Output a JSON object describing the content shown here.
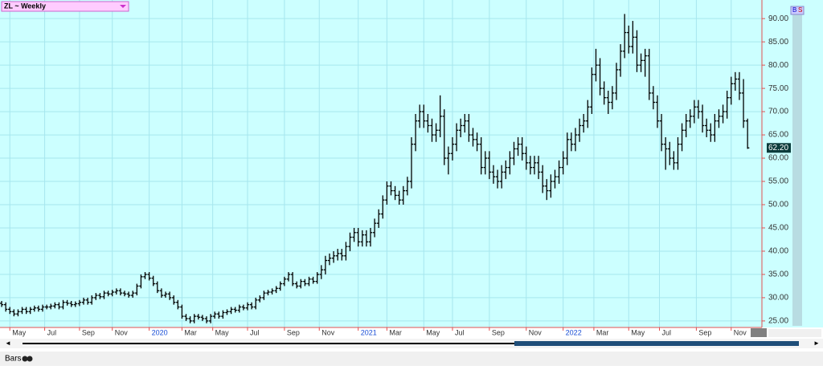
{
  "chart_data": {
    "type": "ohlc",
    "title": "ZL ~ Weekly",
    "footer": "Bars",
    "color": "#000000",
    "grid": true,
    "last_label": "62.20",
    "bars": [
      [
        28.8,
        29.3,
        28,
        28.5
      ],
      [
        28.5,
        29,
        27,
        27.5
      ],
      [
        27.5,
        28,
        26.5,
        27
      ],
      [
        27,
        27.5,
        26,
        26.5
      ],
      [
        26.5,
        27.5,
        26,
        27
      ],
      [
        27,
        28,
        26.5,
        27.5
      ],
      [
        27.5,
        28,
        26.5,
        27
      ],
      [
        27,
        28,
        26.5,
        27.5
      ],
      [
        27.5,
        28.3,
        27,
        27.8
      ],
      [
        27.8,
        28.3,
        27,
        27.5
      ],
      [
        27.5,
        28.5,
        27,
        28
      ],
      [
        28,
        28.5,
        27.5,
        28
      ],
      [
        28,
        28.7,
        27.5,
        28.2
      ],
      [
        28.2,
        29,
        27.7,
        28.5
      ],
      [
        28.5,
        29,
        27.5,
        28
      ],
      [
        28,
        29.5,
        27.5,
        29
      ],
      [
        29,
        29.5,
        28.3,
        28.8
      ],
      [
        28.8,
        29.3,
        28,
        28.5
      ],
      [
        28.5,
        29.2,
        28,
        28.7
      ],
      [
        28.7,
        29.5,
        28.2,
        29
      ],
      [
        29,
        30,
        28.5,
        29.5
      ],
      [
        29.5,
        30,
        28.5,
        29
      ],
      [
        29,
        30.5,
        28.5,
        30
      ],
      [
        30,
        31,
        29.5,
        30.5
      ],
      [
        30.5,
        31,
        29.7,
        30.2
      ],
      [
        30.2,
        31.5,
        29.7,
        31
      ],
      [
        31,
        31.5,
        30.3,
        30.8
      ],
      [
        30.8,
        31.7,
        30.3,
        31.2
      ],
      [
        31.2,
        32,
        30.7,
        31.5
      ],
      [
        31.5,
        32,
        30.5,
        31
      ],
      [
        31,
        31.5,
        30.3,
        30.8
      ],
      [
        30.8,
        31.3,
        30,
        30.5
      ],
      [
        30.5,
        31.5,
        30,
        31
      ],
      [
        31,
        33,
        30.5,
        32.5
      ],
      [
        32.5,
        35,
        32,
        34.5
      ],
      [
        34.5,
        35.5,
        34,
        35
      ],
      [
        35,
        35.5,
        33.7,
        34.2
      ],
      [
        34.2,
        34.7,
        32.5,
        33
      ],
      [
        33,
        33.5,
        31,
        31.5
      ],
      [
        31.5,
        32,
        30,
        30.5
      ],
      [
        30.5,
        31.3,
        30,
        30.8
      ],
      [
        30.8,
        31.3,
        29.5,
        30
      ],
      [
        30,
        30.5,
        28.5,
        29
      ],
      [
        29,
        29.5,
        27.5,
        28
      ],
      [
        28,
        28.5,
        25.5,
        26
      ],
      [
        26,
        26.5,
        25,
        25.5
      ],
      [
        25.5,
        26,
        24.5,
        25
      ],
      [
        25,
        26.5,
        24.5,
        26
      ],
      [
        26,
        26.5,
        25.3,
        25.8
      ],
      [
        25.8,
        26.3,
        25,
        25.5
      ],
      [
        25.5,
        26,
        24.5,
        25
      ],
      [
        25,
        26.5,
        24.5,
        26
      ],
      [
        26,
        27,
        25.5,
        26.5
      ],
      [
        26.5,
        27,
        25.5,
        26
      ],
      [
        26,
        27.3,
        25.5,
        26.8
      ],
      [
        26.8,
        27.5,
        26.3,
        27
      ],
      [
        27,
        28,
        26.5,
        27.5
      ],
      [
        27.5,
        28,
        26.8,
        27.3
      ],
      [
        27.3,
        28.5,
        26.8,
        28
      ],
      [
        28,
        28.5,
        27.3,
        27.8
      ],
      [
        27.8,
        29,
        27.3,
        28.5
      ],
      [
        28.5,
        29,
        27.5,
        28
      ],
      [
        28,
        30,
        27.5,
        29.5
      ],
      [
        29.5,
        30.5,
        29,
        30
      ],
      [
        30,
        31.5,
        29.5,
        31
      ],
      [
        31,
        31.7,
        30.5,
        31.2
      ],
      [
        31.2,
        32,
        30.7,
        31.5
      ],
      [
        31.5,
        32.5,
        31,
        32
      ],
      [
        32,
        33.5,
        31.5,
        33
      ],
      [
        33,
        34.5,
        32.5,
        34
      ],
      [
        34,
        35.5,
        33.5,
        35
      ],
      [
        35,
        35.5,
        32.5,
        33
      ],
      [
        33,
        33.5,
        32,
        32.5
      ],
      [
        32.5,
        34,
        32,
        33.5
      ],
      [
        33.5,
        34,
        32.5,
        33
      ],
      [
        33,
        34.5,
        32.5,
        34
      ],
      [
        34,
        34.5,
        33,
        33.5
      ],
      [
        33.5,
        35.5,
        33,
        35
      ],
      [
        35,
        37,
        34,
        36
      ],
      [
        36,
        39,
        35,
        38
      ],
      [
        38,
        39.5,
        37,
        38.5
      ],
      [
        38.5,
        40,
        37.5,
        39
      ],
      [
        39,
        40.5,
        38,
        39.5
      ],
      [
        39.5,
        40.5,
        38,
        39
      ],
      [
        39,
        42,
        38,
        41
      ],
      [
        41,
        44,
        40,
        43
      ],
      [
        43,
        45,
        42,
        44
      ],
      [
        44,
        45,
        41,
        42
      ],
      [
        42,
        44.5,
        41,
        43.5
      ],
      [
        43.5,
        44.5,
        41,
        42
      ],
      [
        42,
        45,
        41,
        44
      ],
      [
        44,
        47,
        43,
        46
      ],
      [
        46,
        49,
        45,
        48
      ],
      [
        48,
        52,
        47,
        51
      ],
      [
        51,
        55,
        50,
        54
      ],
      [
        54,
        55,
        52,
        53
      ],
      [
        53,
        54,
        51,
        52
      ],
      [
        52,
        53,
        50,
        51
      ],
      [
        51,
        54,
        50,
        53
      ],
      [
        53,
        56,
        52,
        55
      ],
      [
        55,
        64.5,
        53.5,
        63
      ],
      [
        63,
        69.5,
        61.5,
        68
      ],
      [
        68,
        71.5,
        66.5,
        70
      ],
      [
        70,
        71.5,
        66.5,
        68
      ],
      [
        68,
        69.5,
        65.5,
        67
      ],
      [
        67,
        68.5,
        63.5,
        65
      ],
      [
        65,
        67.5,
        63.5,
        66
      ],
      [
        66,
        73.5,
        64.5,
        69
      ],
      [
        69,
        70.5,
        58.5,
        60
      ],
      [
        60,
        62.5,
        56.5,
        61
      ],
      [
        61,
        64.5,
        59.5,
        63
      ],
      [
        63,
        67.5,
        61.5,
        66
      ],
      [
        66,
        68.5,
        64.5,
        67
      ],
      [
        67,
        69.5,
        65.5,
        68
      ],
      [
        68,
        69.5,
        63.5,
        65
      ],
      [
        65,
        66.5,
        62.5,
        64
      ],
      [
        64,
        65.5,
        61.5,
        63
      ],
      [
        63,
        64.5,
        56.5,
        58
      ],
      [
        58,
        61.5,
        56.5,
        60
      ],
      [
        60,
        61.5,
        55.5,
        57
      ],
      [
        57,
        58.5,
        54.5,
        56
      ],
      [
        56,
        57.5,
        53.5,
        55
      ],
      [
        55,
        58.5,
        53.5,
        57
      ],
      [
        57,
        59.5,
        55.5,
        58
      ],
      [
        58,
        61.5,
        56.5,
        60
      ],
      [
        60,
        63.5,
        58.5,
        62
      ],
      [
        62,
        64.5,
        60.5,
        63
      ],
      [
        63,
        64.5,
        59.5,
        61
      ],
      [
        61,
        62.5,
        57.5,
        59
      ],
      [
        59,
        60.5,
        56.5,
        58
      ],
      [
        58,
        60.5,
        56.5,
        59
      ],
      [
        59,
        60.5,
        55.5,
        57
      ],
      [
        57,
        58.5,
        52.5,
        54
      ],
      [
        54,
        55.5,
        51,
        53
      ],
      [
        53,
        56.5,
        51.5,
        55
      ],
      [
        55,
        57.5,
        53.5,
        56
      ],
      [
        56,
        59.5,
        54.5,
        58
      ],
      [
        58,
        61.5,
        56.5,
        60
      ],
      [
        60,
        65.5,
        58.5,
        64
      ],
      [
        64,
        65.5,
        61.5,
        63
      ],
      [
        63,
        66.5,
        61.5,
        65
      ],
      [
        65,
        68.5,
        63.5,
        67
      ],
      [
        67,
        69.5,
        65.5,
        68
      ],
      [
        68,
        72.5,
        66.5,
        71
      ],
      [
        71,
        79.5,
        69.5,
        78
      ],
      [
        78,
        83.5,
        76.5,
        80
      ],
      [
        80,
        81.5,
        73.5,
        75
      ],
      [
        75,
        76.5,
        71.5,
        73
      ],
      [
        73,
        74.5,
        69.5,
        72
      ],
      [
        72,
        75.5,
        70.5,
        74
      ],
      [
        74,
        80.5,
        72.5,
        79
      ],
      [
        79,
        84.5,
        77.5,
        83
      ],
      [
        83,
        91,
        81.5,
        87
      ],
      [
        87,
        88.5,
        82.5,
        84
      ],
      [
        84,
        89.5,
        82.5,
        86
      ],
      [
        86,
        87.5,
        78.5,
        80
      ],
      [
        80,
        82.5,
        78.5,
        81
      ],
      [
        81,
        83.5,
        77.5,
        82
      ],
      [
        82,
        83.5,
        72.5,
        74
      ],
      [
        74,
        75.5,
        70.5,
        72
      ],
      [
        72,
        73.5,
        66.5,
        68
      ],
      [
        68,
        69.5,
        61.5,
        63
      ],
      [
        63,
        64.5,
        57.5,
        62
      ],
      [
        62,
        63.5,
        58.5,
        60
      ],
      [
        60,
        61.5,
        57.5,
        59
      ],
      [
        59,
        64.5,
        57.5,
        63
      ],
      [
        63,
        67.5,
        61.5,
        66
      ],
      [
        66,
        69.5,
        64.5,
        68
      ],
      [
        68,
        70.5,
        66.5,
        69
      ],
      [
        69,
        72.5,
        67.5,
        71
      ],
      [
        71,
        72.5,
        68.5,
        70
      ],
      [
        70,
        71.5,
        65.5,
        67
      ],
      [
        67,
        68.5,
        64.5,
        66
      ],
      [
        66,
        67.5,
        63.5,
        65
      ],
      [
        65,
        69.5,
        63.5,
        68
      ],
      [
        68,
        70.5,
        66.5,
        69
      ],
      [
        69,
        71.5,
        67.5,
        70
      ],
      [
        70,
        74.5,
        68.5,
        73
      ],
      [
        73,
        77.5,
        71.5,
        76
      ],
      [
        76,
        78.5,
        74.5,
        77
      ],
      [
        77,
        78.5,
        72.5,
        74
      ],
      [
        74,
        77,
        66.5,
        68
      ],
      [
        68,
        68.5,
        62,
        62.2
      ]
    ],
    "xlim": [
      -0.4,
      185.5
    ],
    "xticks": [
      {
        "value": 2,
        "label": "May"
      },
      {
        "value": 10.5,
        "label": "Jul"
      },
      {
        "value": 19,
        "label": "Sep"
      },
      {
        "value": 27,
        "label": "Nov"
      },
      {
        "value": 36,
        "label": "2020"
      },
      {
        "value": 44,
        "label": "Mar"
      },
      {
        "value": 51.5,
        "label": "May"
      },
      {
        "value": 60,
        "label": "Jul"
      },
      {
        "value": 69,
        "label": "Sep"
      },
      {
        "value": 77.5,
        "label": "Nov"
      },
      {
        "value": 87,
        "label": "2021"
      },
      {
        "value": 94,
        "label": "Mar"
      },
      {
        "value": 103,
        "label": "May"
      },
      {
        "value": 110,
        "label": "Jul"
      },
      {
        "value": 119,
        "label": "Sep"
      },
      {
        "value": 128,
        "label": "Nov"
      },
      {
        "value": 137,
        "label": "2022"
      },
      {
        "value": 144.5,
        "label": "Mar"
      },
      {
        "value": 153,
        "label": "May"
      },
      {
        "value": 160.5,
        "label": "Jul"
      },
      {
        "value": 169.5,
        "label": "Sep"
      },
      {
        "value": 178,
        "label": "Nov"
      }
    ],
    "ylim": [
      23.6,
      94
    ],
    "yticks": [
      {
        "value": 25,
        "label": "25.00"
      },
      {
        "value": 30,
        "label": "30.00"
      },
      {
        "value": 35,
        "label": "35.00"
      },
      {
        "value": 40,
        "label": "40.00"
      },
      {
        "value": 45,
        "label": "45.00"
      },
      {
        "value": 50,
        "label": "50.00"
      },
      {
        "value": 55,
        "label": "55.00"
      },
      {
        "value": 60,
        "label": "60.00"
      },
      {
        "value": 65,
        "label": "65.00"
      },
      {
        "value": 70,
        "label": "70.00"
      },
      {
        "value": 75,
        "label": "75.00"
      },
      {
        "value": 80,
        "label": "80.00"
      },
      {
        "value": 85,
        "label": "85.00"
      },
      {
        "value": 90,
        "label": "90.00"
      }
    ]
  }
}
